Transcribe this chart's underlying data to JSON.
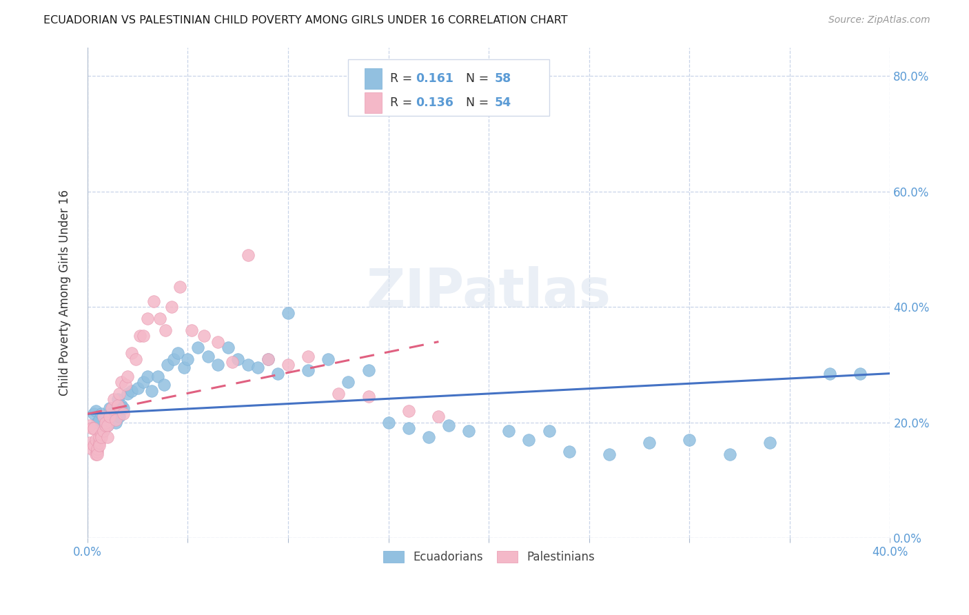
{
  "title": "ECUADORIAN VS PALESTINIAN CHILD POVERTY AMONG GIRLS UNDER 16 CORRELATION CHART",
  "source": "Source: ZipAtlas.com",
  "ylabel": "Child Poverty Among Girls Under 16",
  "xlim": [
    0.0,
    0.4
  ],
  "ylim": [
    0.0,
    0.85
  ],
  "xtick_positions": [
    0.0,
    0.05,
    0.1,
    0.15,
    0.2,
    0.25,
    0.3,
    0.35,
    0.4
  ],
  "xtick_labels": [
    "0.0%",
    "",
    "",
    "",
    "",
    "",
    "",
    "",
    "40.0%"
  ],
  "ytick_positions": [
    0.0,
    0.2,
    0.4,
    0.6,
    0.8
  ],
  "ytick_labels_right": [
    "0.0%",
    "20.0%",
    "40.0%",
    "60.0%",
    "80.0%"
  ],
  "blue_color": "#92c0e0",
  "pink_color": "#f4b8c8",
  "blue_line_color": "#4472c4",
  "pink_line_color": "#e06080",
  "label_color": "#5b9bd5",
  "watermark": "ZIPatlas",
  "background_color": "#ffffff",
  "grid_color": "#c8d4e8",
  "ecu_x": [
    0.003,
    0.004,
    0.005,
    0.006,
    0.007,
    0.008,
    0.009,
    0.01,
    0.011,
    0.012,
    0.014,
    0.015,
    0.016,
    0.017,
    0.018,
    0.02,
    0.022,
    0.025,
    0.028,
    0.03,
    0.032,
    0.035,
    0.038,
    0.04,
    0.043,
    0.045,
    0.048,
    0.05,
    0.055,
    0.06,
    0.065,
    0.07,
    0.075,
    0.08,
    0.085,
    0.09,
    0.095,
    0.1,
    0.11,
    0.12,
    0.13,
    0.14,
    0.15,
    0.16,
    0.17,
    0.18,
    0.19,
    0.21,
    0.22,
    0.23,
    0.24,
    0.26,
    0.28,
    0.3,
    0.32,
    0.34,
    0.37,
    0.385
  ],
  "ecu_y": [
    0.215,
    0.22,
    0.2,
    0.205,
    0.215,
    0.185,
    0.21,
    0.195,
    0.225,
    0.215,
    0.2,
    0.24,
    0.21,
    0.23,
    0.225,
    0.25,
    0.255,
    0.26,
    0.27,
    0.28,
    0.255,
    0.28,
    0.265,
    0.3,
    0.31,
    0.32,
    0.295,
    0.31,
    0.33,
    0.315,
    0.3,
    0.33,
    0.31,
    0.3,
    0.295,
    0.31,
    0.285,
    0.39,
    0.29,
    0.31,
    0.27,
    0.29,
    0.2,
    0.19,
    0.175,
    0.195,
    0.185,
    0.185,
    0.17,
    0.185,
    0.15,
    0.145,
    0.165,
    0.17,
    0.145,
    0.165,
    0.285,
    0.285
  ],
  "pal_x": [
    0.001,
    0.001,
    0.002,
    0.002,
    0.003,
    0.003,
    0.004,
    0.004,
    0.005,
    0.005,
    0.005,
    0.006,
    0.006,
    0.006,
    0.007,
    0.007,
    0.008,
    0.008,
    0.009,
    0.009,
    0.01,
    0.01,
    0.011,
    0.012,
    0.013,
    0.014,
    0.015,
    0.016,
    0.017,
    0.018,
    0.019,
    0.02,
    0.022,
    0.024,
    0.026,
    0.028,
    0.03,
    0.033,
    0.036,
    0.039,
    0.042,
    0.046,
    0.052,
    0.058,
    0.065,
    0.072,
    0.08,
    0.09,
    0.1,
    0.11,
    0.125,
    0.14,
    0.16,
    0.175
  ],
  "pal_y": [
    0.195,
    0.165,
    0.19,
    0.155,
    0.16,
    0.19,
    0.145,
    0.17,
    0.15,
    0.155,
    0.145,
    0.165,
    0.175,
    0.16,
    0.18,
    0.175,
    0.21,
    0.185,
    0.195,
    0.2,
    0.195,
    0.175,
    0.21,
    0.225,
    0.24,
    0.205,
    0.23,
    0.25,
    0.27,
    0.215,
    0.265,
    0.28,
    0.32,
    0.31,
    0.35,
    0.35,
    0.38,
    0.41,
    0.38,
    0.36,
    0.4,
    0.435,
    0.36,
    0.35,
    0.34,
    0.305,
    0.49,
    0.31,
    0.3,
    0.315,
    0.25,
    0.245,
    0.22,
    0.21
  ],
  "ecu_trend_x": [
    0.0,
    0.4
  ],
  "ecu_trend_y": [
    0.215,
    0.285
  ],
  "pal_trend_x": [
    0.0,
    0.175
  ],
  "pal_trend_y": [
    0.215,
    0.34
  ],
  "legend1_text1": "R = ",
  "legend1_val1": "0.161",
  "legend1_text2": "  N = ",
  "legend1_val2": "58",
  "legend2_text1": "R = ",
  "legend2_val1": "0.136",
  "legend2_text2": "  N = ",
  "legend2_val2": "54"
}
